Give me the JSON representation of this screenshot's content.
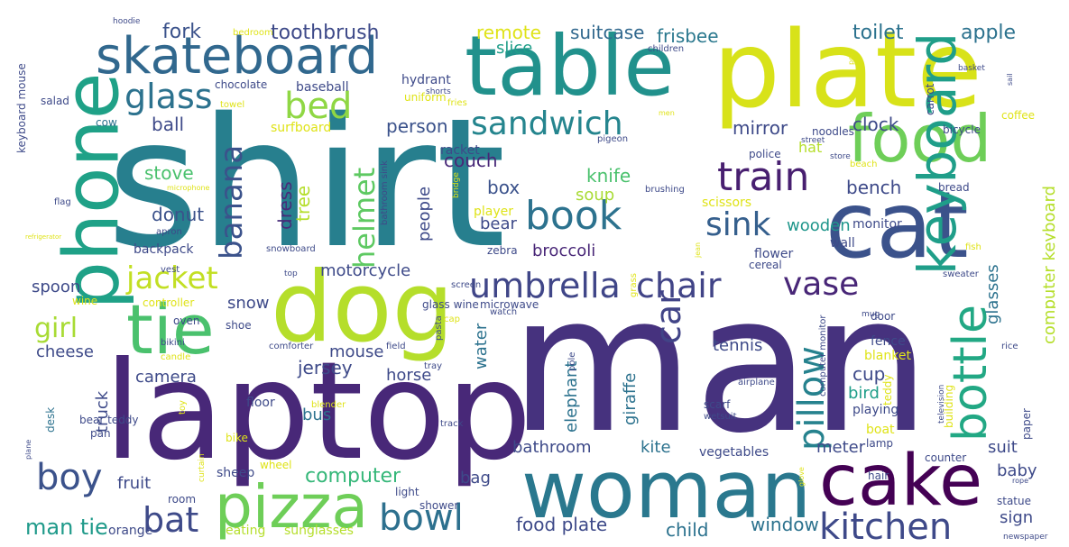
{
  "words": [
    {
      "text": "shirt",
      "color": "#277f8e"
    },
    {
      "text": "man",
      "color": "#46327e"
    },
    {
      "text": "laptop",
      "color": "#482878"
    },
    {
      "text": "plate",
      "color": "#d8e219"
    },
    {
      "text": "table",
      "color": "#21918c"
    },
    {
      "text": "cat",
      "color": "#3b528b"
    },
    {
      "text": "phone",
      "color": "#1fa187"
    },
    {
      "text": "dog",
      "color": "#b5de2b"
    },
    {
      "text": "woman",
      "color": "#2a788e"
    },
    {
      "text": "food",
      "color": "#6ece58"
    },
    {
      "text": "cake",
      "color": "#440154"
    },
    {
      "text": "tie",
      "color": "#4ac16d"
    },
    {
      "text": "pizza",
      "color": "#6ece58"
    },
    {
      "text": "skateboard",
      "color": "#31688e"
    },
    {
      "text": "keyboard",
      "color": "#1f9e89"
    },
    {
      "text": "bottle",
      "color": "#22a884"
    },
    {
      "text": "book",
      "color": "#2c728e"
    },
    {
      "text": "train",
      "color": "#481f70"
    },
    {
      "text": "kitchen",
      "color": "#3e4989"
    },
    {
      "text": "umbrella",
      "color": "#404688"
    },
    {
      "text": "chair",
      "color": "#414487"
    },
    {
      "text": "car",
      "color": "#414487"
    },
    {
      "text": "pillow",
      "color": "#26828e"
    },
    {
      "text": "bed",
      "color": "#8fd744"
    },
    {
      "text": "sandwich",
      "color": "#25858e"
    },
    {
      "text": "vase",
      "color": "#482677"
    },
    {
      "text": "sink",
      "color": "#355f8d"
    },
    {
      "text": "banana",
      "color": "#3b528b"
    },
    {
      "text": "boy",
      "color": "#3b528b"
    },
    {
      "text": "bowl",
      "color": "#2d708e"
    },
    {
      "text": "jacket",
      "color": "#c2df23"
    },
    {
      "text": "glass",
      "color": "#2c728e"
    },
    {
      "text": "helmet",
      "color": "#5ec962"
    },
    {
      "text": "bat",
      "color": "#3e4a89"
    },
    {
      "text": "girl",
      "color": "#a8db34"
    },
    {
      "text": "umbrella",
      "color": "#2c728e"
    },
    {
      "text": "computer",
      "color": "#35b779"
    },
    {
      "text": "man tie",
      "color": "#1f9a8a"
    },
    {
      "text": "toothbrush",
      "color": "#3e4a89"
    },
    {
      "text": "remote",
      "color": "#dfe318"
    },
    {
      "text": "suitcase",
      "color": "#31688e"
    },
    {
      "text": "frisbee",
      "color": "#2a788e"
    },
    {
      "text": "toilet",
      "color": "#2c728e"
    },
    {
      "text": "apple",
      "color": "#2c728e"
    },
    {
      "text": "fork",
      "color": "#3b528b"
    },
    {
      "text": "slice",
      "color": "#1f9e89"
    },
    {
      "text": "ball",
      "color": "#3e4a89"
    },
    {
      "text": "person",
      "color": "#3b528b"
    },
    {
      "text": "mirror",
      "color": "#3e4a89"
    },
    {
      "text": "clock",
      "color": "#3e4a89"
    },
    {
      "text": "couch",
      "color": "#482878"
    },
    {
      "text": "knife",
      "color": "#4ac16d"
    },
    {
      "text": "box",
      "color": "#3b528b"
    },
    {
      "text": "stove",
      "color": "#4ac16d"
    },
    {
      "text": "bench",
      "color": "#3e4a89"
    },
    {
      "text": "soup",
      "color": "#a8db34"
    },
    {
      "text": "dress",
      "color": "#472c7a"
    },
    {
      "text": "tree",
      "color": "#b5de2b"
    },
    {
      "text": "donut",
      "color": "#3b528b"
    },
    {
      "text": "people",
      "color": "#3e4a89"
    },
    {
      "text": "bear",
      "color": "#3e4a89"
    },
    {
      "text": "wooden",
      "color": "#1f968b"
    },
    {
      "text": "monitor",
      "color": "#3e4a89"
    },
    {
      "text": "broccoli",
      "color": "#482677"
    },
    {
      "text": "motorcycle",
      "color": "#3e4a89"
    },
    {
      "text": "snow",
      "color": "#3e4a89"
    },
    {
      "text": "spoon",
      "color": "#3e4a89"
    },
    {
      "text": "cheese",
      "color": "#3e4a89"
    },
    {
      "text": "mouse",
      "color": "#3e4a89"
    },
    {
      "text": "jersey",
      "color": "#3e4a89"
    },
    {
      "text": "camera",
      "color": "#3e4a89"
    },
    {
      "text": "horse",
      "color": "#3e4a89"
    },
    {
      "text": "water",
      "color": "#2c728e"
    },
    {
      "text": "tennis",
      "color": "#3e4a89"
    },
    {
      "text": "cup",
      "color": "#3e4a89"
    },
    {
      "text": "bird",
      "color": "#1f9e89"
    },
    {
      "text": "truck",
      "color": "#3e4a89"
    },
    {
      "text": "bus",
      "color": "#2c728e"
    },
    {
      "text": "giraffe",
      "color": "#2c728e"
    },
    {
      "text": "elephant",
      "color": "#2c728e"
    },
    {
      "text": "meter",
      "color": "#3e4a89"
    },
    {
      "text": "kite",
      "color": "#2c728e"
    },
    {
      "text": "bathroom",
      "color": "#3e4a89"
    },
    {
      "text": "suit",
      "color": "#3e4a89"
    },
    {
      "text": "fruit",
      "color": "#3e4a89"
    },
    {
      "text": "bag",
      "color": "#3e4a89"
    },
    {
      "text": "baby",
      "color": "#3e4a89"
    },
    {
      "text": "sign",
      "color": "#3e4a89"
    },
    {
      "text": "food plate",
      "color": "#3e4a89"
    },
    {
      "text": "child",
      "color": "#2c728e"
    },
    {
      "text": "window",
      "color": "#2c728e"
    },
    {
      "text": "computer keyboard",
      "color": "#b5de2b"
    },
    {
      "text": "glasses",
      "color": "#2c728e"
    },
    {
      "text": "hat",
      "color": "#b5de2b"
    },
    {
      "text": "backpack",
      "color": "#3e4a89"
    },
    {
      "text": "floor",
      "color": "#3e4a89"
    },
    {
      "text": "eating",
      "color": "#b5de2b"
    },
    {
      "text": "sunglasses",
      "color": "#b5de2b"
    },
    {
      "text": "orange",
      "color": "#3e4a89"
    },
    {
      "text": "sheep",
      "color": "#3e4a89"
    },
    {
      "text": "vegetables",
      "color": "#3e4a89"
    },
    {
      "text": "fence",
      "color": "#3e4a89"
    },
    {
      "text": "blanket",
      "color": "#dfe318"
    },
    {
      "text": "flower",
      "color": "#3e4a89"
    },
    {
      "text": "wall",
      "color": "#3e4a89"
    },
    {
      "text": "scissors",
      "color": "#dfe318"
    },
    {
      "text": "racket",
      "color": "#3e4a89"
    },
    {
      "text": "player",
      "color": "#dfe318"
    },
    {
      "text": "zebra",
      "color": "#3e4a89"
    },
    {
      "text": "police",
      "color": "#3e4a89"
    },
    {
      "text": "cereal",
      "color": "#3e4a89"
    },
    {
      "text": "door",
      "color": "#3e4a89"
    },
    {
      "text": "playing",
      "color": "#3e4a89"
    },
    {
      "text": "boat",
      "color": "#dfe318"
    },
    {
      "text": "lamp",
      "color": "#3e4a89"
    },
    {
      "text": "counter",
      "color": "#3e4a89"
    },
    {
      "text": "statue",
      "color": "#3e4a89"
    },
    {
      "text": "paper",
      "color": "#3e4a89"
    },
    {
      "text": "newspaper",
      "color": "#3e4a89"
    },
    {
      "text": "hair",
      "color": "#3e4a89"
    },
    {
      "text": "building",
      "color": "#dfe318"
    },
    {
      "text": "teddy",
      "color": "#dfe318"
    },
    {
      "text": "coffee",
      "color": "#dfe318"
    },
    {
      "text": "bread",
      "color": "#3e4a89"
    },
    {
      "text": "noodles",
      "color": "#3e4a89"
    },
    {
      "text": "carrot",
      "color": "#3e4a89"
    },
    {
      "text": "bicycle",
      "color": "#3e4a89"
    },
    {
      "text": "wine",
      "color": "#dfe318"
    },
    {
      "text": "oven",
      "color": "#3e4a89"
    },
    {
      "text": "shoe",
      "color": "#3e4a89"
    },
    {
      "text": "bike",
      "color": "#dfe318"
    },
    {
      "text": "desk",
      "color": "#2c728e"
    },
    {
      "text": "pan",
      "color": "#3e4a89"
    },
    {
      "text": "bear teddy",
      "color": "#3e4a89"
    },
    {
      "text": "toy",
      "color": "#dfe318"
    },
    {
      "text": "light",
      "color": "#3e4a89"
    },
    {
      "text": "room",
      "color": "#3e4a89"
    },
    {
      "text": "shower",
      "color": "#3e4a89"
    },
    {
      "text": "wheel",
      "color": "#dfe318"
    },
    {
      "text": "baseball",
      "color": "#3e4a89"
    },
    {
      "text": "chocolate",
      "color": "#3e4a89"
    },
    {
      "text": "hydrant",
      "color": "#3e4a89"
    },
    {
      "text": "uniform",
      "color": "#dfe318"
    },
    {
      "text": "surfboard",
      "color": "#dfe318"
    },
    {
      "text": "towel",
      "color": "#dfe318"
    },
    {
      "text": "salad",
      "color": "#3e4a89"
    },
    {
      "text": "cow",
      "color": "#2c728e"
    },
    {
      "text": "keyboard mouse",
      "color": "#3e4a89"
    },
    {
      "text": "hoodie",
      "color": "#3e4a89"
    },
    {
      "text": "bedroom",
      "color": "#dfe318"
    },
    {
      "text": "children",
      "color": "#3e4a89"
    },
    {
      "text": "shorts",
      "color": "#3e4a89"
    },
    {
      "text": "fries",
      "color": "#dfe318"
    },
    {
      "text": "controller",
      "color": "#dfe318"
    },
    {
      "text": "bathroom sink",
      "color": "#3e4a89"
    },
    {
      "text": "snowboard",
      "color": "#3e4a89"
    },
    {
      "text": "vest",
      "color": "#3e4a89"
    },
    {
      "text": "apron",
      "color": "#3e4a89"
    },
    {
      "text": "flag",
      "color": "#3e4a89"
    },
    {
      "text": "microwave",
      "color": "#3e4a89"
    },
    {
      "text": "screen",
      "color": "#3e4a89"
    },
    {
      "text": "glass wine",
      "color": "#3e4a89"
    },
    {
      "text": "comforter",
      "color": "#3e4a89"
    },
    {
      "text": "bikini",
      "color": "#3e4a89"
    },
    {
      "text": "candle",
      "color": "#dfe318"
    },
    {
      "text": "tray",
      "color": "#3e4a89"
    },
    {
      "text": "blender",
      "color": "#dfe318"
    },
    {
      "text": "track",
      "color": "#3e4a89"
    },
    {
      "text": "scarf",
      "color": "#3e4a89"
    },
    {
      "text": "wetsuit",
      "color": "#3e4a89"
    },
    {
      "text": "airplane",
      "color": "#3e4a89"
    },
    {
      "text": "computer monitor",
      "color": "#3e4a89"
    },
    {
      "text": "sweater",
      "color": "#3e4a89"
    },
    {
      "text": "rice",
      "color": "#3e4a89"
    },
    {
      "text": "mug",
      "color": "#3e4a89"
    },
    {
      "text": "street",
      "color": "#3e4a89"
    },
    {
      "text": "store",
      "color": "#3e4a89"
    },
    {
      "text": "beach",
      "color": "#dfe318"
    },
    {
      "text": "fish",
      "color": "#dfe318"
    },
    {
      "text": "brushing",
      "color": "#3e4a89"
    },
    {
      "text": "pigeon",
      "color": "#3e4a89"
    },
    {
      "text": "cap",
      "color": "#dfe318"
    },
    {
      "text": "watch",
      "color": "#3e4a89"
    },
    {
      "text": "pasta",
      "color": "#3e4a89"
    },
    {
      "text": "field",
      "color": "#3e4a89"
    },
    {
      "text": "pole",
      "color": "#3e4a89"
    },
    {
      "text": "grass",
      "color": "#dfe318"
    },
    {
      "text": "refrigerator",
      "color": "#dfe318"
    },
    {
      "text": "television",
      "color": "#3e4a89"
    },
    {
      "text": "microphone",
      "color": "#dfe318"
    },
    {
      "text": "top",
      "color": "#3e4a89"
    },
    {
      "text": "plane",
      "color": "#3e4a89"
    },
    {
      "text": "curtain",
      "color": "#dfe318"
    },
    {
      "text": "basket",
      "color": "#3e4a89"
    },
    {
      "text": "bridge",
      "color": "#dfe318"
    },
    {
      "text": "pot",
      "color": "#dfe318"
    },
    {
      "text": "rope",
      "color": "#3e4a89"
    },
    {
      "text": "men",
      "color": "#dfe318"
    },
    {
      "text": "sail",
      "color": "#3e4a89"
    },
    {
      "text": "jean",
      "color": "#dfe318"
    },
    {
      "text": "glove",
      "color": "#dfe318"
    }
  ]
}
